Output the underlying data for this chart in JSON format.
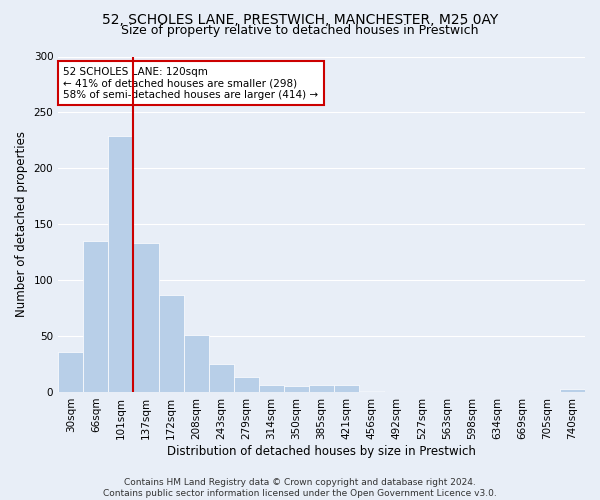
{
  "title1": "52, SCHOLES LANE, PRESTWICH, MANCHESTER, M25 0AY",
  "title2": "Size of property relative to detached houses in Prestwich",
  "xlabel": "Distribution of detached houses by size in Prestwich",
  "ylabel": "Number of detached properties",
  "categories": [
    "30sqm",
    "66sqm",
    "101sqm",
    "137sqm",
    "172sqm",
    "208sqm",
    "243sqm",
    "279sqm",
    "314sqm",
    "350sqm",
    "385sqm",
    "421sqm",
    "456sqm",
    "492sqm",
    "527sqm",
    "563sqm",
    "598sqm",
    "634sqm",
    "669sqm",
    "705sqm",
    "740sqm"
  ],
  "values": [
    36,
    135,
    229,
    133,
    87,
    51,
    25,
    13,
    6,
    5,
    6,
    6,
    1,
    0,
    0,
    0,
    0,
    0,
    0,
    0,
    3
  ],
  "bar_color": "#b8cfe8",
  "bar_edgecolor": "#ffffff",
  "vline_color": "#cc0000",
  "vline_x": 2.5,
  "annotation_text": "52 SCHOLES LANE: 120sqm\n← 41% of detached houses are smaller (298)\n58% of semi-detached houses are larger (414) →",
  "annotation_box_edgecolor": "#cc0000",
  "annotation_box_facecolor": "#ffffff",
  "ylim": [
    0,
    300
  ],
  "yticks": [
    0,
    50,
    100,
    150,
    200,
    250,
    300
  ],
  "footer": "Contains HM Land Registry data © Crown copyright and database right 2024.\nContains public sector information licensed under the Open Government Licence v3.0.",
  "background_color": "#e8eef7",
  "plot_background": "#e8eef7",
  "grid_color": "#ffffff",
  "title_fontsize": 10,
  "subtitle_fontsize": 9,
  "tick_fontsize": 7.5,
  "axis_label_fontsize": 8.5,
  "footer_fontsize": 6.5,
  "annotation_fontsize": 7.5
}
